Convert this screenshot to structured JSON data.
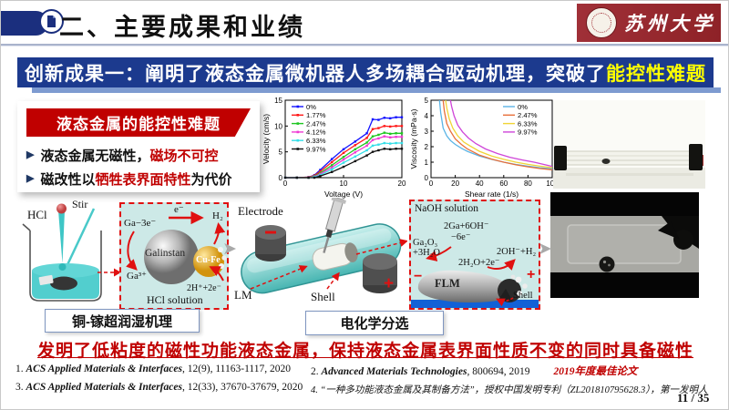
{
  "header": {
    "title": "二、主要成果和业绩",
    "logo_text": "苏州大学"
  },
  "banner": {
    "text_white": "创新成果一：阐明了液态金属微机器人多场耦合驱动机理，突破了",
    "text_yellow": "能控性难题"
  },
  "problem_box": {
    "title": "液态金属的能控性难题",
    "bullets": [
      {
        "pre": "液态金属无磁性，",
        "red": "磁场不可控",
        "post": ""
      },
      {
        "pre": "磁改性以",
        "red": "牺牲表界面特性",
        "post": "为代价"
      }
    ]
  },
  "chart_data": [
    {
      "type": "line",
      "xlabel": "Voltage (V)",
      "ylabel": "Velocity (cm/s)",
      "xlim": [
        0,
        20
      ],
      "ylim": [
        0,
        15
      ],
      "xticks": [
        0,
        10,
        20
      ],
      "yticks": [
        0,
        5,
        10,
        15
      ],
      "legend_position": "top-left",
      "markers": true,
      "grid": false,
      "x": [
        0,
        2,
        4,
        5,
        6,
        8,
        10,
        12,
        14,
        15,
        16,
        17,
        18,
        19,
        20
      ],
      "series": [
        {
          "name": "0%",
          "color": "#1414ff",
          "values": [
            0,
            0,
            0.1,
            0.5,
            1.5,
            3.6,
            5.5,
            7.0,
            8.6,
            11.3,
            11.2,
            11.6,
            11.5,
            11.7,
            11.7
          ]
        },
        {
          "name": "1.77%",
          "color": "#ff1a1a",
          "values": [
            0,
            0,
            0.1,
            0.4,
            1.2,
            3.0,
            4.8,
            6.3,
            7.7,
            9.4,
            9.6,
            10.0,
            9.9,
            10.0,
            10.0
          ]
        },
        {
          "name": "2.47%",
          "color": "#1fc722",
          "values": [
            0,
            0,
            0,
            0.3,
            0.9,
            2.4,
            4.0,
            5.5,
            6.8,
            8.0,
            8.3,
            8.7,
            8.5,
            8.6,
            8.6
          ]
        },
        {
          "name": "4.12%",
          "color": "#f03ad4",
          "values": [
            0,
            0,
            0,
            0.2,
            0.7,
            2.0,
            3.5,
            4.9,
            6.2,
            7.3,
            7.6,
            8.0,
            7.8,
            7.9,
            7.9
          ]
        },
        {
          "name": "6.33%",
          "color": "#35dfe8",
          "values": [
            0,
            0,
            0,
            0.1,
            0.5,
            1.6,
            2.9,
            4.1,
            5.3,
            6.2,
            6.4,
            6.7,
            6.6,
            6.7,
            6.7
          ]
        },
        {
          "name": "9.97%",
          "color": "#111111",
          "values": [
            0,
            0,
            0,
            0,
            0.3,
            1.1,
            2.1,
            3.2,
            4.3,
            5.0,
            5.3,
            5.6,
            5.5,
            5.6,
            5.6
          ]
        }
      ]
    },
    {
      "type": "line",
      "xlabel": "Shear rate (1/s)",
      "ylabel": "Viscosity (mPa·s)",
      "xlim": [
        0,
        100
      ],
      "ylim": [
        0,
        5
      ],
      "xticks": [
        0,
        20,
        40,
        60,
        80,
        100
      ],
      "yticks": [
        0,
        1,
        2,
        3,
        4,
        5
      ],
      "legend_position": "top-right",
      "markers": false,
      "grid": false,
      "series": [
        {
          "name": "0%",
          "color": "#5ab4e5",
          "x": [
            7,
            8,
            10,
            13,
            16,
            20,
            25,
            30,
            40,
            50,
            60,
            70,
            80,
            90,
            100
          ],
          "values": [
            5,
            4.2,
            3.2,
            2.7,
            2.4,
            2.15,
            1.9,
            1.7,
            1.4,
            1.18,
            1.0,
            0.85,
            0.74,
            0.64,
            0.57
          ]
        },
        {
          "name": "2.47%",
          "color": "#e8703a",
          "x": [
            10,
            11,
            13,
            16,
            20,
            25,
            30,
            40,
            50,
            60,
            70,
            80,
            90,
            100
          ],
          "values": [
            5,
            4.3,
            3.5,
            3.0,
            2.5,
            2.15,
            1.85,
            1.45,
            1.2,
            1.0,
            0.83,
            0.7,
            0.59,
            0.51
          ]
        },
        {
          "name": "6.33%",
          "color": "#f0d435",
          "x": [
            12,
            13,
            15,
            18,
            22,
            27,
            32,
            40,
            50,
            60,
            70,
            80,
            90,
            100
          ],
          "values": [
            5,
            4.5,
            3.8,
            3.2,
            2.7,
            2.3,
            2.05,
            1.7,
            1.4,
            1.18,
            1.0,
            0.86,
            0.74,
            0.65
          ]
        },
        {
          "name": "9.97%",
          "color": "#cf45d8",
          "x": [
            16,
            17,
            19,
            22,
            26,
            31,
            37,
            45,
            55,
            65,
            75,
            85,
            100
          ],
          "values": [
            5,
            4.6,
            4.0,
            3.4,
            2.95,
            2.55,
            2.2,
            1.85,
            1.55,
            1.32,
            1.15,
            1.0,
            0.73
          ]
        }
      ]
    }
  ],
  "figures": {
    "beaker": {
      "hcl": "HCl",
      "stir": "Stir"
    },
    "hcl_box": {
      "e": "e⁻",
      "ga_minus": "Ga−3e⁻",
      "ga3": "Ga³⁺",
      "sphere1": "Galinstan",
      "sphere2": "Cu-Fe",
      "h2": "H₂",
      "h_plus": "2H⁺+2e⁻",
      "caption": "HCl solution"
    },
    "channel": {
      "electrode": "Electrode",
      "lm": "LM",
      "shell": "Shell",
      "minus": "−",
      "plus": "+"
    },
    "naoh_box": {
      "title": "NaOH solution",
      "eq1a": "2Ga+6OH⁻",
      "eq1b": "−6e⁻",
      "eq2a": "Ga₂O₃",
      "eq2b": "+3H₂O",
      "eq3": "2H₂O+2e⁻",
      "eq4": "2OH⁻+H₂",
      "flm": "FLM",
      "shell": "Shell",
      "plus": "+",
      "minus": "−"
    },
    "caption1": "铜-镓超润湿机理",
    "caption2": "电化学分选"
  },
  "headline": "发明了低粘度的磁性功能液态金属，保持液态金属表界面性质不变的同时具备磁性",
  "references": [
    {
      "num": "1.",
      "journal": "ACS Applied Materials & Interfaces",
      "rest": ", 12(9), 11163-1117, 2020",
      "badge": ""
    },
    {
      "num": "2.",
      "journal": "Advanced Materials Technologies",
      "rest": ", 800694, 2019",
      "badge": "2019年度最佳论文"
    },
    {
      "num": "3.",
      "journal": "ACS Applied Materials & Interfaces",
      "rest": ", 12(33), 37670-37679, 2020",
      "badge": ""
    },
    {
      "num": "4.",
      "text": "“一种多功能液态金属及其制备方法”，授权中国发明专利（ZL201810795628.3），第一发明人"
    }
  ],
  "page_number": "11 / 35",
  "icons": {
    "triangle_bullet": "▶",
    "arrow_right": "➤"
  },
  "colors": {
    "accent_navy": "#1c3a8e",
    "accent_red": "#c00000",
    "highlight_yellow": "#ffff00",
    "teal_bg": "#cde9e7",
    "substrate_blue": "#1261d6"
  }
}
